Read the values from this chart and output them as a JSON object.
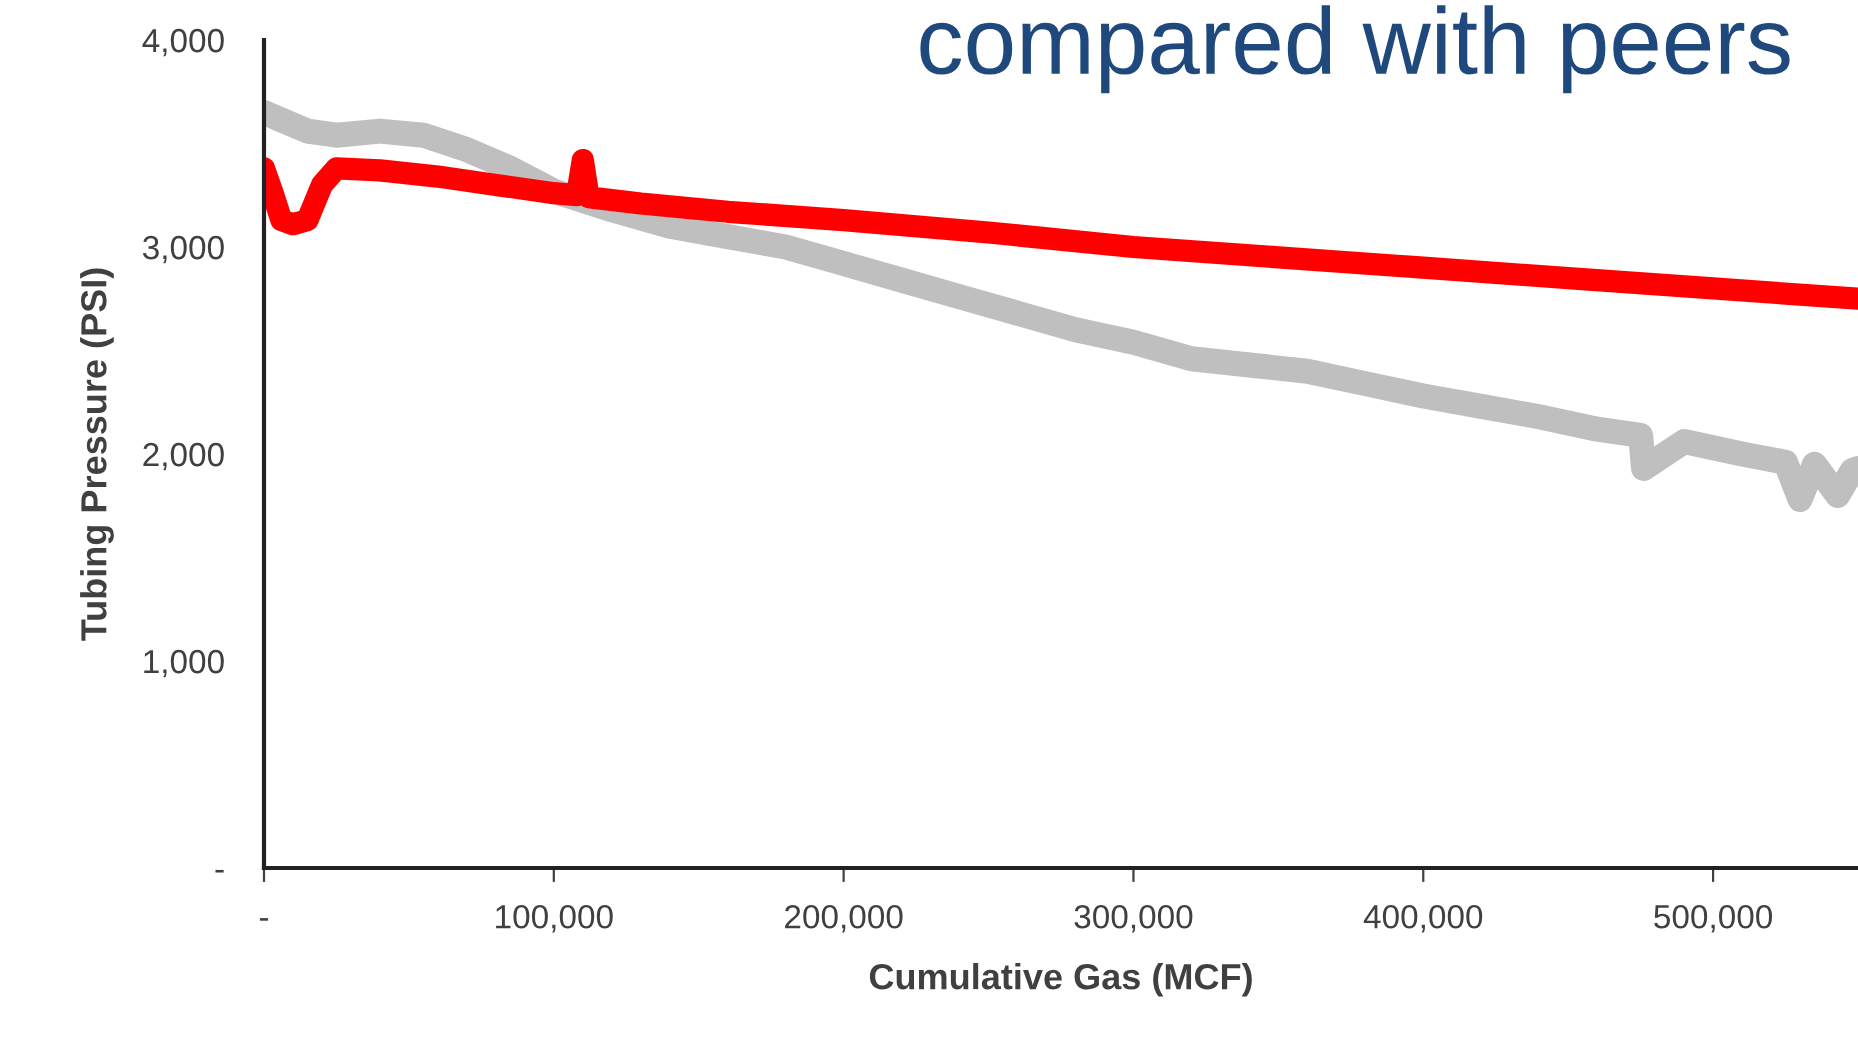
{
  "chart_data": {
    "type": "line",
    "title": "compared with peers",
    "xlabel": "Cumulative Gas (MCF)",
    "ylabel": "Tubing Pressure (PSI)",
    "series": [
      {
        "color": "#bfbfbf",
        "x": [
          0,
          5000,
          15000,
          25000,
          40000,
          55000,
          70000,
          85000,
          100000,
          120000,
          140000,
          160000,
          180000,
          200000,
          220000,
          240000,
          260000,
          280000,
          300000,
          320000,
          340000,
          360000,
          380000,
          400000,
          420000,
          440000,
          460000,
          475000,
          476000,
          490000,
          510000,
          525000,
          530000,
          535000,
          543000,
          548000,
          550000
        ],
        "values": [
          3650,
          3620,
          3560,
          3540,
          3560,
          3540,
          3470,
          3380,
          3270,
          3180,
          3100,
          3050,
          3000,
          2920,
          2840,
          2760,
          2680,
          2600,
          2540,
          2460,
          2430,
          2400,
          2340,
          2280,
          2230,
          2180,
          2120,
          2090,
          1930,
          2060,
          2000,
          1960,
          1780,
          1950,
          1800,
          1920,
          1930
        ]
      },
      {
        "color": "#ff0000",
        "x": [
          0,
          3000,
          6000,
          10000,
          15000,
          20000,
          25000,
          40000,
          60000,
          80000,
          100000,
          108000,
          110000,
          112000,
          130000,
          160000,
          200000,
          250000,
          300000,
          350000,
          400000,
          450000,
          500000,
          550000
        ],
        "values": [
          3380,
          3260,
          3130,
          3110,
          3130,
          3300,
          3380,
          3370,
          3340,
          3300,
          3260,
          3250,
          3420,
          3240,
          3210,
          3170,
          3130,
          3070,
          3000,
          2950,
          2900,
          2850,
          2800,
          2750
        ]
      }
    ],
    "xlim": [
      0,
      550000
    ],
    "xticks": [
      {
        "value": 0,
        "label": "-"
      },
      {
        "value": 100000,
        "label": "100,000"
      },
      {
        "value": 200000,
        "label": "200,000"
      },
      {
        "value": 300000,
        "label": "300,000"
      },
      {
        "value": 400000,
        "label": "400,000"
      },
      {
        "value": 500000,
        "label": "500,000"
      }
    ],
    "ylim": [
      0,
      4000
    ],
    "yticks": [
      {
        "value": 0,
        "label": "-"
      },
      {
        "value": 1000,
        "label": "1,000"
      },
      {
        "value": 2000,
        "label": "2,000"
      },
      {
        "value": 3000,
        "label": "3,000"
      },
      {
        "value": 4000,
        "label": "4,000"
      }
    ],
    "grid": false,
    "legend": false,
    "line_style": "solid"
  }
}
